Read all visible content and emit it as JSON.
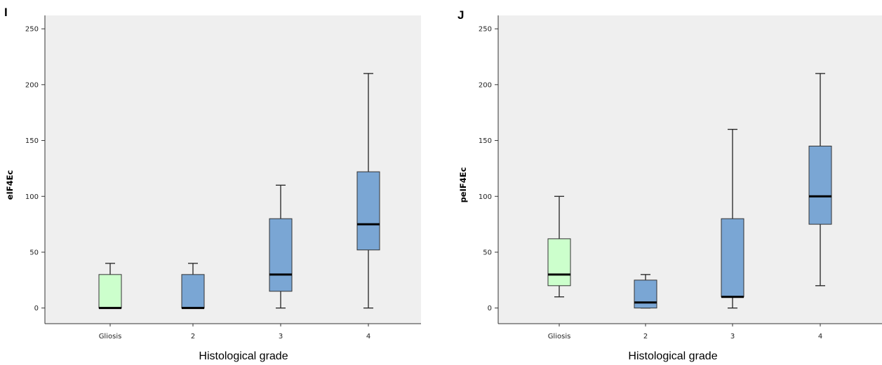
{
  "chart_data": [
    {
      "type": "box",
      "panel_label": "I",
      "xlabel": "Histological grade",
      "ylabel": "eIF4Ec",
      "ylim": [
        -14,
        262
      ],
      "yticks": [
        0,
        50,
        100,
        150,
        200,
        250
      ],
      "grid": false,
      "categories": [
        "Gliosis",
        "2",
        "3",
        "4"
      ],
      "boxes": [
        {
          "category": "Gliosis",
          "whisker_low": 0,
          "q1": 0,
          "median": 0,
          "q3": 30,
          "whisker_high": 40,
          "color": "#ccffcc"
        },
        {
          "category": "2",
          "whisker_low": 0,
          "q1": 0,
          "median": 0,
          "q3": 30,
          "whisker_high": 40,
          "color": "#7aa6d4"
        },
        {
          "category": "3",
          "whisker_low": 0,
          "q1": 15,
          "median": 30,
          "q3": 80,
          "whisker_high": 110,
          "color": "#7aa6d4"
        },
        {
          "category": "4",
          "whisker_low": 0,
          "q1": 52,
          "median": 75,
          "q3": 122,
          "whisker_high": 210,
          "color": "#7aa6d4"
        }
      ]
    },
    {
      "type": "box",
      "panel_label": "J",
      "xlabel": "Histological grade",
      "ylabel": "peIF4Ec",
      "ylim": [
        -14,
        262
      ],
      "yticks": [
        0,
        50,
        100,
        150,
        200,
        250
      ],
      "grid": false,
      "categories": [
        "Gliosis",
        "2",
        "3",
        "4"
      ],
      "boxes": [
        {
          "category": "Gliosis",
          "whisker_low": 10,
          "q1": 20,
          "median": 30,
          "q3": 62,
          "whisker_high": 100,
          "color": "#ccffcc"
        },
        {
          "category": "2",
          "whisker_low": 0,
          "q1": 0,
          "median": 5,
          "q3": 25,
          "whisker_high": 30,
          "color": "#7aa6d4"
        },
        {
          "category": "3",
          "whisker_low": 0,
          "q1": 10,
          "median": 10,
          "q3": 80,
          "whisker_high": 160,
          "color": "#7aa6d4"
        },
        {
          "category": "4",
          "whisker_low": 20,
          "q1": 75,
          "median": 100,
          "q3": 145,
          "whisker_high": 210,
          "color": "#7aa6d4"
        }
      ]
    }
  ],
  "colors": {
    "plot_background": "#efefef",
    "box_stroke": "#333333",
    "whisker": "#222222",
    "median": "#000000"
  }
}
